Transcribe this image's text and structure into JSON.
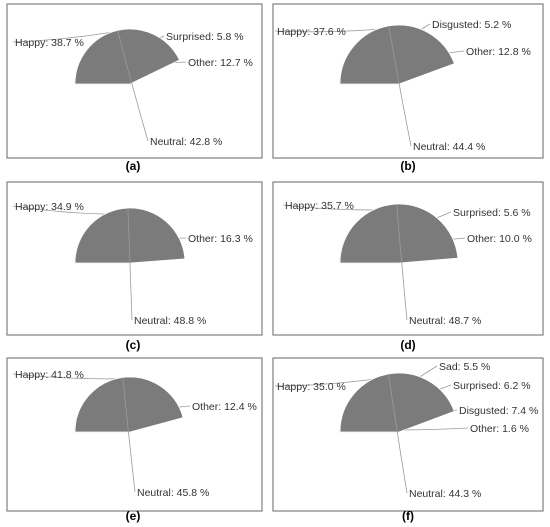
{
  "chart_data": [
    {
      "type": "pie",
      "panel_label": "(a)",
      "slices": [
        {
          "label": "Happy",
          "value": 38.7,
          "text": "Happy: 38.7 %",
          "color": "#8bbf4e"
        },
        {
          "label": "Surprised",
          "value": 5.8,
          "text": "Surprised: 5.8 %",
          "color": "#f08c32"
        },
        {
          "label": "Other",
          "value": 12.7,
          "text": "Other: 12.7 %",
          "color": "#f2f2f2"
        },
        {
          "label": "Neutral",
          "value": 42.8,
          "text": "Neutral: 42.8 %",
          "color": "#7b7b7b"
        }
      ]
    },
    {
      "type": "pie",
      "panel_label": "(b)",
      "slices": [
        {
          "label": "Happy",
          "value": 37.6,
          "text": "Happy: 37.6 %",
          "color": "#8bbf4e"
        },
        {
          "label": "Disgusted",
          "value": 5.2,
          "text": "Disgusted: 5.2 %",
          "color": "#2f5fb0"
        },
        {
          "label": "Other",
          "value": 12.8,
          "text": "Other: 12.8 %",
          "color": "#f2f2f2"
        },
        {
          "label": "Neutral",
          "value": 44.4,
          "text": "Neutral: 44.4 %",
          "color": "#7b7b7b"
        }
      ]
    },
    {
      "type": "pie",
      "panel_label": "(c)",
      "slices": [
        {
          "label": "Happy",
          "value": 34.9,
          "text": "Happy: 34.9 %",
          "color": "#8bbf4e"
        },
        {
          "label": "Other",
          "value": 16.3,
          "text": "Other: 16.3 %",
          "color": "#f2f2f2"
        },
        {
          "label": "Neutral",
          "value": 48.8,
          "text": "Neutral: 48.8 %",
          "color": "#7b7b7b"
        }
      ]
    },
    {
      "type": "pie",
      "panel_label": "(d)",
      "slices": [
        {
          "label": "Happy",
          "value": 35.7,
          "text": "Happy: 35.7 %",
          "color": "#8bbf4e"
        },
        {
          "label": "Surprised",
          "value": 5.6,
          "text": "Surprised: 5.6 %",
          "color": "#f08c32"
        },
        {
          "label": "Other",
          "value": 10.0,
          "text": "Other: 10.0 %",
          "color": "#f2f2f2"
        },
        {
          "label": "Neutral",
          "value": 48.7,
          "text": "Neutral: 48.7 %",
          "color": "#7b7b7b"
        }
      ]
    },
    {
      "type": "pie",
      "panel_label": "(e)",
      "slices": [
        {
          "label": "Happy",
          "value": 41.8,
          "text": "Happy: 41.8 %",
          "color": "#8bbf4e"
        },
        {
          "label": "Other",
          "value": 12.4,
          "text": "Other: 12.4 %",
          "color": "#f2f2f2"
        },
        {
          "label": "Neutral",
          "value": 45.8,
          "text": "Neutral: 45.8 %",
          "color": "#7b7b7b"
        }
      ]
    },
    {
      "type": "pie",
      "panel_label": "(f)",
      "slices": [
        {
          "label": "Happy",
          "value": 35.0,
          "text": "Happy: 35.0 %",
          "color": "#8bbf4e"
        },
        {
          "label": "Sad",
          "value": 5.5,
          "text": "Sad: 5.5 %",
          "color": "#8a5cb0"
        },
        {
          "label": "Surprised",
          "value": 6.2,
          "text": "Surprised: 6.2 %",
          "color": "#f08c32"
        },
        {
          "label": "Disgusted",
          "value": 7.4,
          "text": "Disgusted: 7.4 %",
          "color": "#2f5fb0"
        },
        {
          "label": "Other",
          "value": 1.6,
          "text": "Other: 1.6 %",
          "color": "#f2f2f2"
        },
        {
          "label": "Neutral",
          "value": 44.3,
          "text": "Neutral: 44.3 %",
          "color": "#7b7b7b"
        }
      ]
    }
  ]
}
